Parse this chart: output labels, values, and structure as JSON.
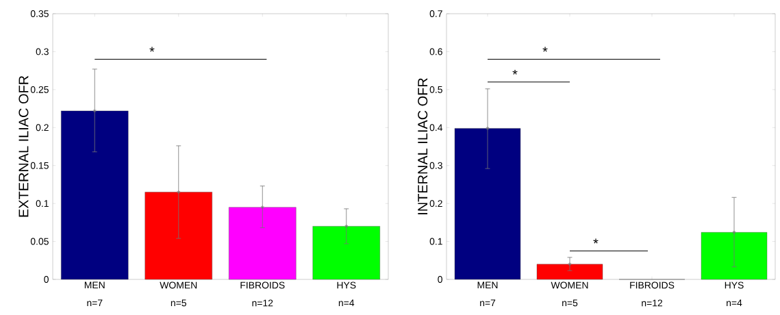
{
  "chart_data": [
    {
      "type": "bar",
      "ylabel": "EXTERNAL ILIAC OFR",
      "categories": [
        "MEN",
        "WOMEN",
        "FIBROIDS",
        "HYS"
      ],
      "values": [
        0.222,
        0.115,
        0.095,
        0.07
      ],
      "colors": [
        "#000080",
        "#ff0000",
        "#ff00ff",
        "#00ff00"
      ],
      "errors": [
        [
          0.168,
          0.277
        ],
        [
          0.054,
          0.176
        ],
        [
          0.068,
          0.123
        ],
        [
          0.047,
          0.093
        ]
      ],
      "ylim": [
        0,
        0.35
      ],
      "yticks": [
        0,
        0.05,
        0.1,
        0.15,
        0.2,
        0.25,
        0.3,
        0.35
      ],
      "annotations": [
        "*",
        "n=7",
        "n=5",
        "n=12",
        "n=4"
      ]
    },
    {
      "type": "bar",
      "ylabel": "INTERNAL ILIAC OFR",
      "categories": [
        "MEN",
        "WOMEN",
        "FIBROIDS",
        "HYS"
      ],
      "values": [
        0.398,
        0.04,
        0,
        0.124
      ],
      "colors": [
        "#000080",
        "#ff0000",
        "#ff00ff",
        "#00ff00"
      ],
      "errors": [
        [
          0.292,
          0.502
        ],
        [
          0.023,
          0.058
        ],
        null,
        [
          0.033,
          0.216
        ]
      ],
      "ylim": [
        0,
        0.7
      ],
      "yticks": [
        0,
        0.1,
        0.2,
        0.3,
        0.4,
        0.5,
        0.6,
        0.7
      ],
      "annotations": [
        "*",
        "*",
        "*",
        "n=7",
        "n=5",
        "n=12",
        "n=4"
      ]
    }
  ]
}
